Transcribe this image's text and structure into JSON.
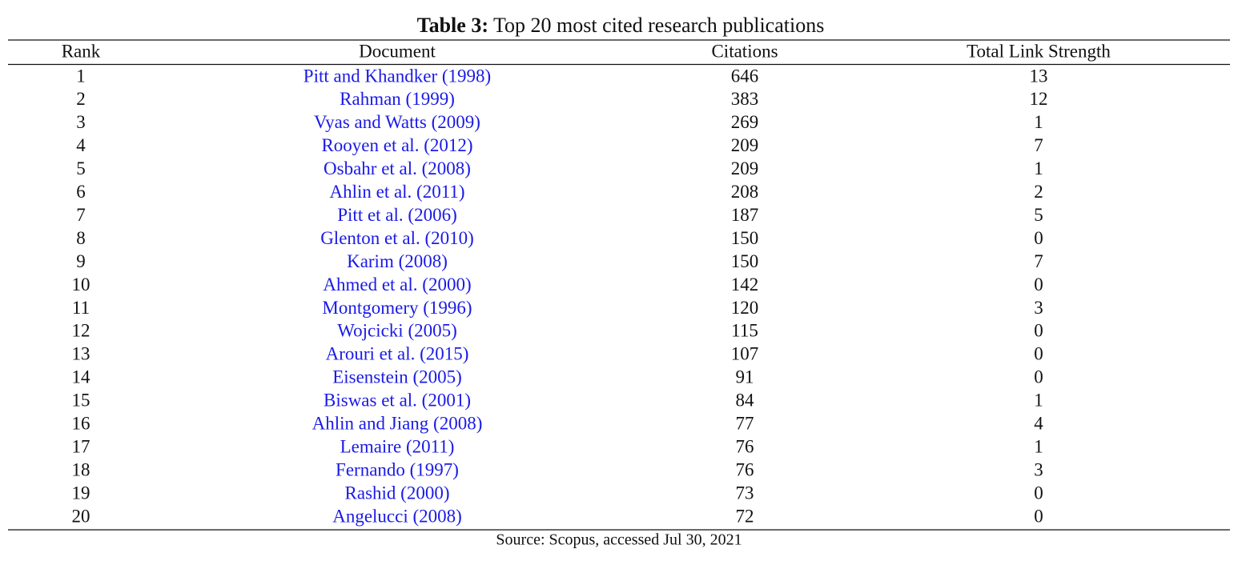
{
  "table": {
    "title": {
      "label": "Table 3:",
      "text": "Top 20 most cited research publications"
    },
    "header": [
      "Rank",
      "Document",
      "Citations",
      "Total Link Strength"
    ],
    "rows": [
      [
        1,
        "Pitt and Khandker (1998)",
        646,
        13
      ],
      [
        2,
        "Rahman (1999)",
        383,
        12
      ],
      [
        3,
        "Vyas and Watts (2009)",
        269,
        1
      ],
      [
        4,
        "Rooyen et al. (2012)",
        209,
        7
      ],
      [
        5,
        "Osbahr et al. (2008)",
        209,
        1
      ],
      [
        6,
        "Ahlin et al. (2011)",
        208,
        2
      ],
      [
        7,
        "Pitt et al. (2006)",
        187,
        5
      ],
      [
        8,
        "Glenton et al. (2010)",
        150,
        0
      ],
      [
        9,
        "Karim (2008)",
        150,
        7
      ],
      [
        10,
        "Ahmed et al. (2000)",
        142,
        0
      ],
      [
        11,
        "Montgomery (1996)",
        120,
        3
      ],
      [
        12,
        "Wojcicki (2005)",
        115,
        0
      ],
      [
        13,
        "Arouri et al. (2015)",
        107,
        0
      ],
      [
        14,
        "Eisenstein (2005)",
        91,
        0
      ],
      [
        15,
        "Biswas et al. (2001)",
        84,
        1
      ],
      [
        16,
        "Ahlin and Jiang (2008)",
        77,
        4
      ],
      [
        17,
        "Lemaire (2011)",
        76,
        1
      ],
      [
        18,
        "Fernando (1997)",
        76,
        3
      ],
      [
        19,
        "Rashid (2000)",
        73,
        0
      ],
      [
        20,
        "Angelucci (2008)",
        72,
        0
      ]
    ],
    "source": "Source: Scopus, accessed Jul 30, 2021"
  }
}
